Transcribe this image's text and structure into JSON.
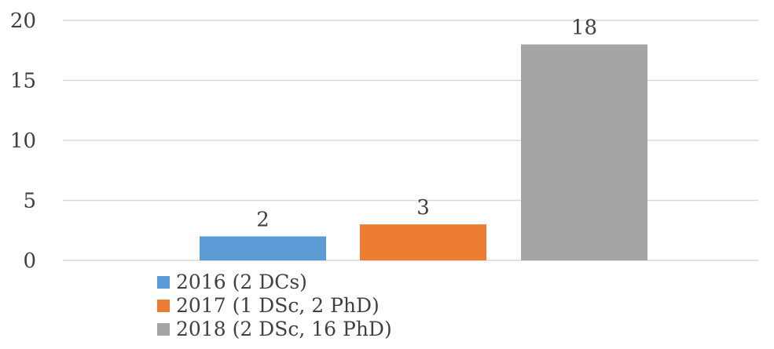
{
  "chart_data": {
    "type": "bar",
    "categories": [
      "2016 (2 DCs)",
      "2017 (1 DSc, 2 PhD)",
      "2018 (2 DSc, 16 PhD)"
    ],
    "values": [
      2,
      3,
      18
    ],
    "data_labels": [
      "2",
      "3",
      "18"
    ],
    "colors": [
      "#5b9bd5",
      "#ed7d31",
      "#a5a5a5"
    ],
    "y_ticks": [
      "0",
      "5",
      "10",
      "15",
      "20"
    ],
    "ylim": [
      0,
      20
    ],
    "grid": true,
    "legend_position": "bottom-left",
    "title": "",
    "xlabel": "",
    "ylabel": ""
  }
}
